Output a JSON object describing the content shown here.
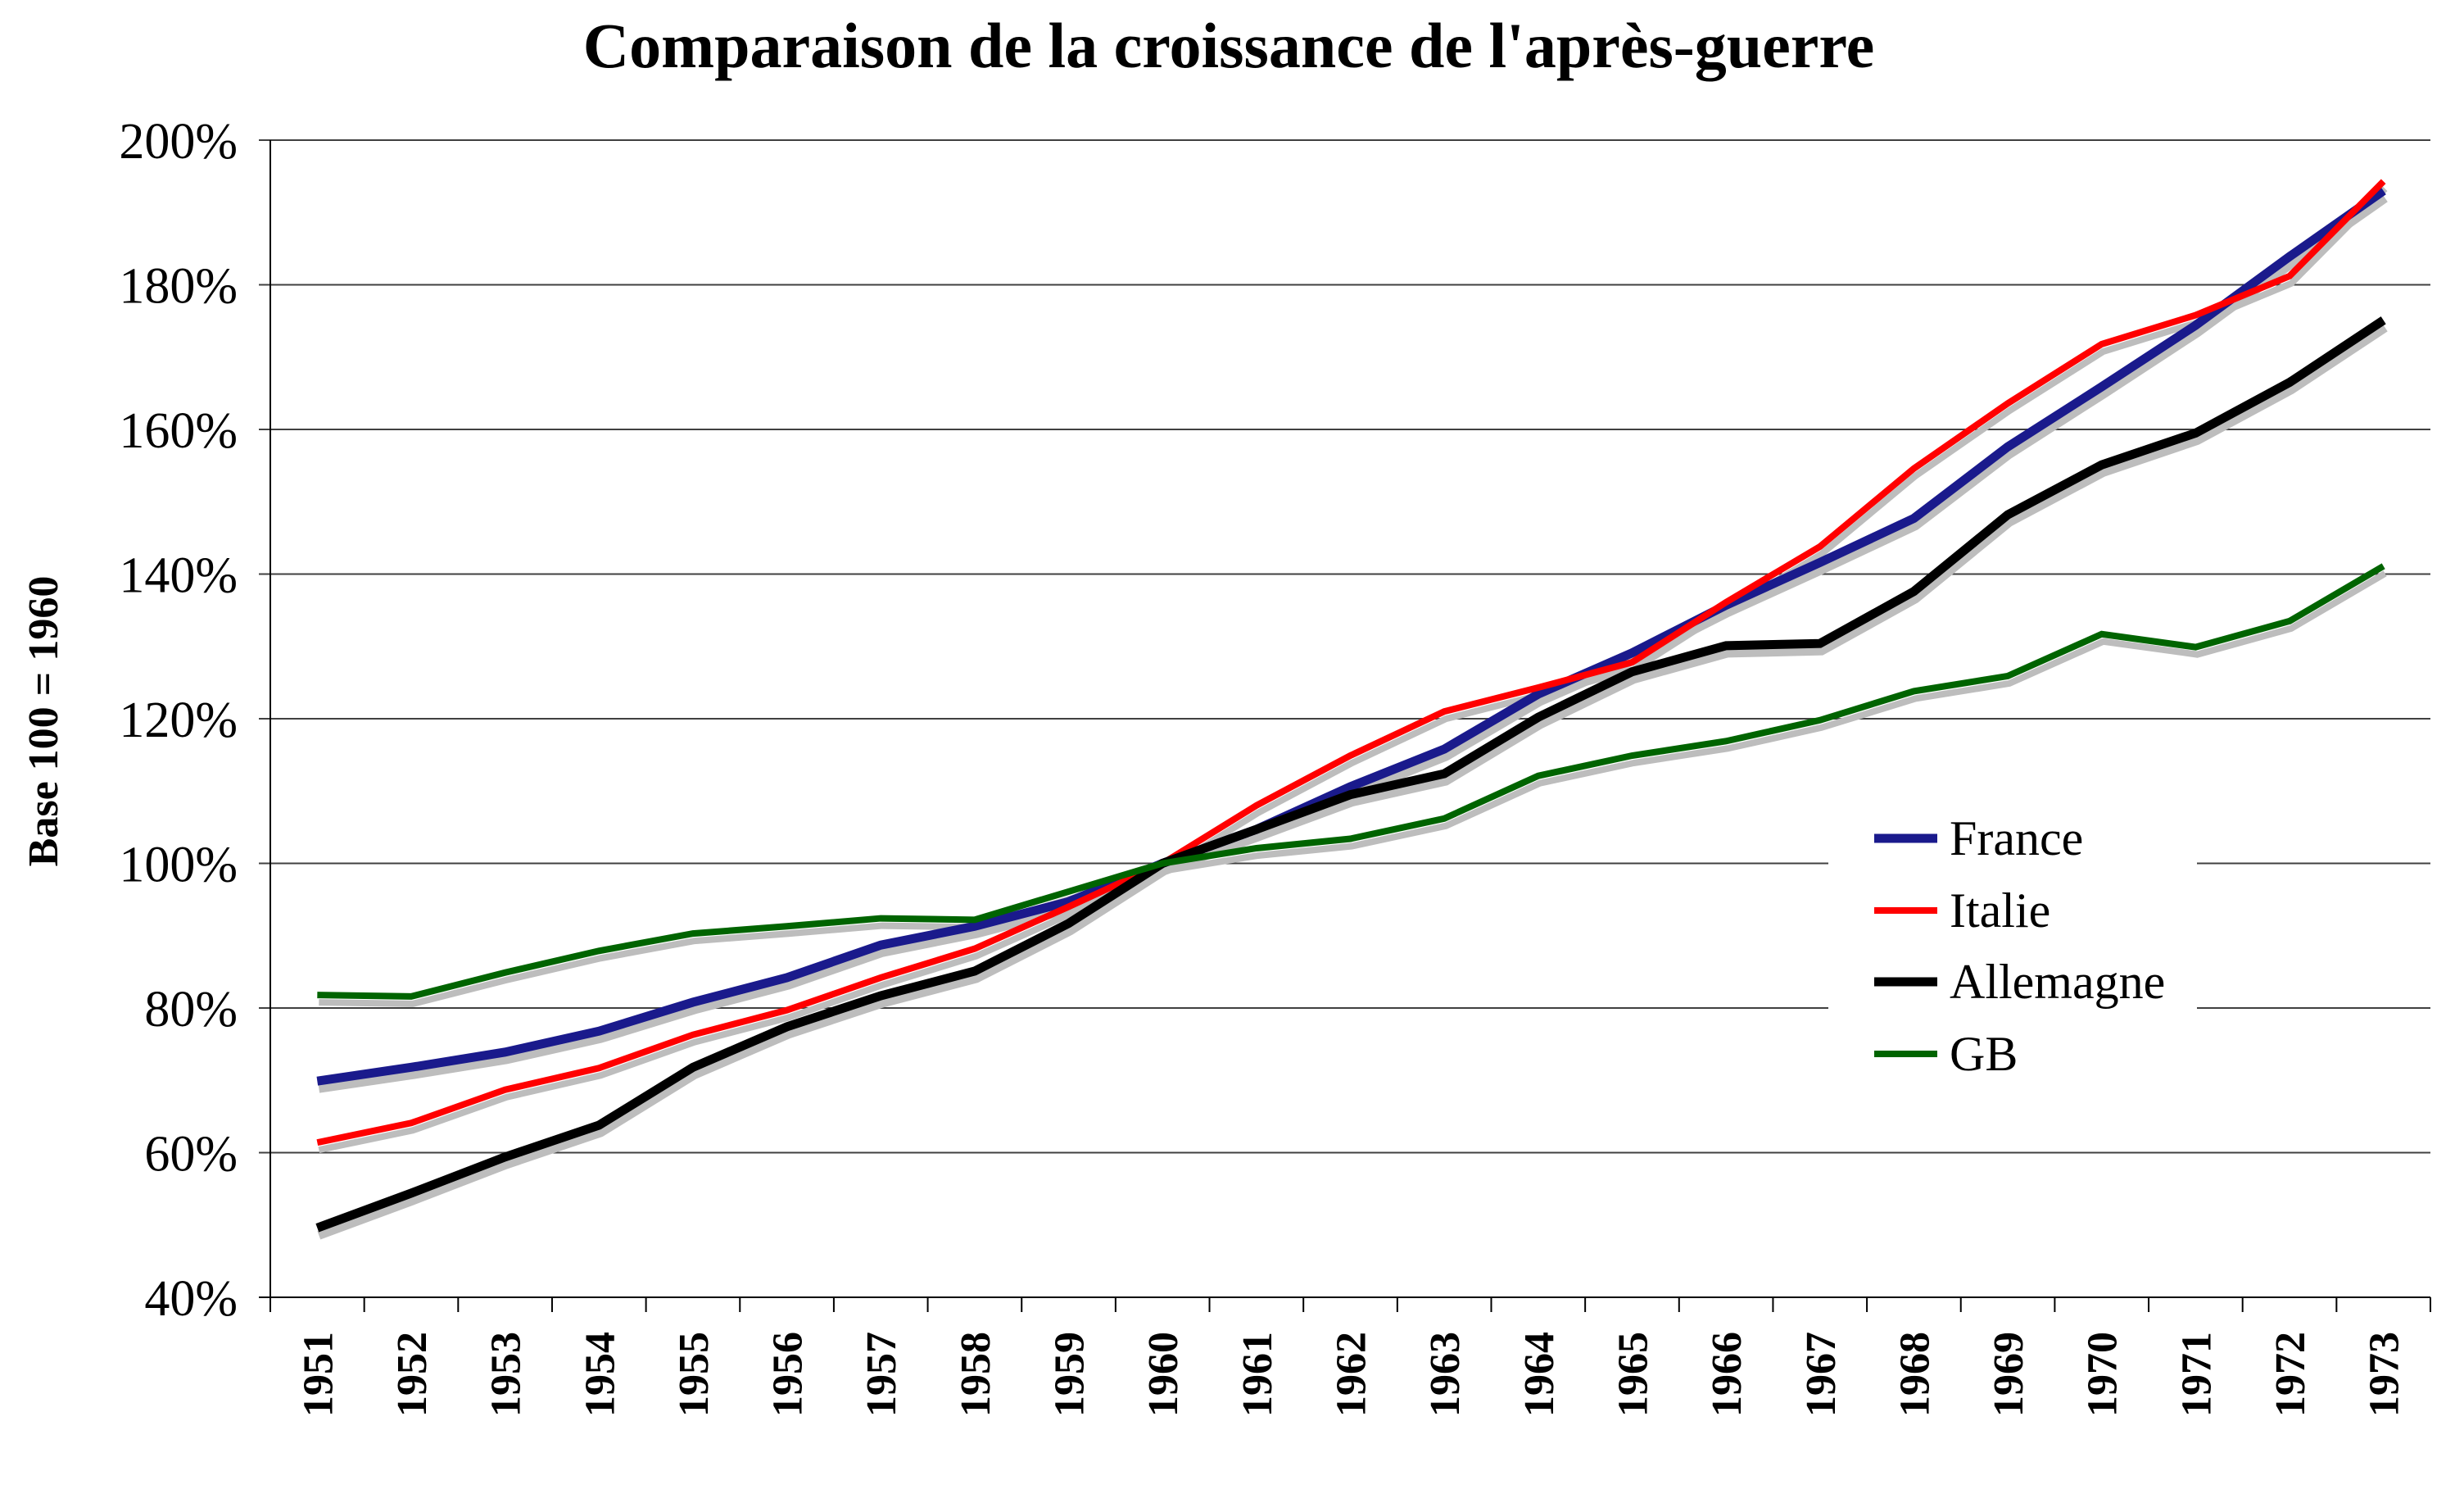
{
  "chart_data": {
    "type": "line",
    "title": "Comparaison de la croissance de l'après-guerre",
    "xlabel": "",
    "ylabel": "Base 100 = 1960",
    "ylim": [
      40,
      200
    ],
    "yticks": [
      40,
      60,
      80,
      100,
      120,
      140,
      160,
      180,
      200
    ],
    "ytick_labels": [
      "40%",
      "60%",
      "80%",
      "100%",
      "120%",
      "140%",
      "160%",
      "180%",
      "200%"
    ],
    "grid": true,
    "legend_position": "right",
    "categories": [
      "1951",
      "1952",
      "1953",
      "1954",
      "1955",
      "1956",
      "1957",
      "1958",
      "1959",
      "1960",
      "1961",
      "1962",
      "1963",
      "1964",
      "1965",
      "1966",
      "1967",
      "1968",
      "1969",
      "1970",
      "1971",
      "1972",
      "1973"
    ],
    "series": [
      {
        "name": "France",
        "color": "#1a1a8c",
        "values": [
          69.9,
          71.8,
          73.9,
          76.8,
          80.8,
          84.2,
          88.7,
          91.3,
          94.7,
          100,
          104.7,
          110.6,
          115.8,
          123.4,
          129.1,
          135.7,
          141.6,
          147.7,
          157.6,
          165.9,
          174.4,
          183.9,
          193.0
        ]
      },
      {
        "name": "Italie",
        "color": "#ff0000",
        "values": [
          61.4,
          64.1,
          68.7,
          71.7,
          76.3,
          79.7,
          84.2,
          88.2,
          94.0,
          100,
          108.0,
          114.9,
          121.0,
          124.3,
          127.8,
          136.1,
          143.8,
          154.6,
          163.6,
          171.8,
          175.8,
          181.2,
          194.3
        ]
      },
      {
        "name": "Allemagne",
        "color": "#000000",
        "values": [
          49.6,
          54.4,
          59.4,
          63.8,
          71.8,
          77.4,
          81.7,
          85.1,
          91.7,
          100,
          104.7,
          109.5,
          112.4,
          120.2,
          126.5,
          130.1,
          130.4,
          137.6,
          148.2,
          155.1,
          159.5,
          166.5,
          175.1
        ]
      },
      {
        "name": "GB",
        "color": "#006400",
        "values": [
          81.8,
          81.6,
          84.9,
          87.9,
          90.3,
          91.3,
          92.4,
          92.2,
          96.1,
          100,
          102.1,
          103.4,
          106.2,
          112.1,
          114.9,
          116.9,
          119.8,
          123.8,
          125.9,
          131.7,
          129.9,
          133.5,
          141.1
        ]
      }
    ]
  }
}
